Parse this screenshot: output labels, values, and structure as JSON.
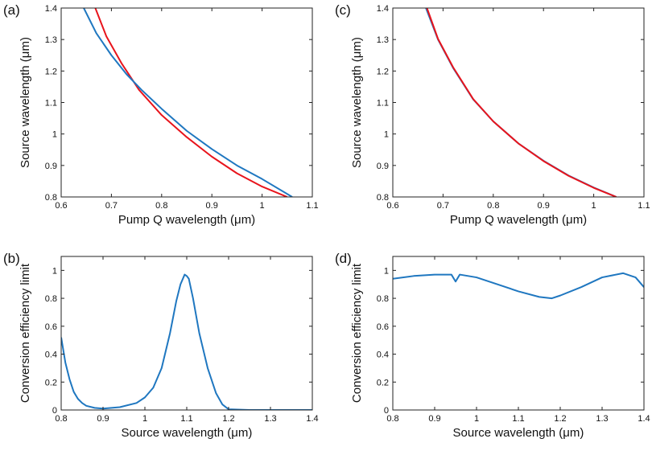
{
  "chart_data": [
    {
      "panel": "(a)",
      "type": "line",
      "xlabel": "Pump Q wavelength (μm)",
      "ylabel": "Source wavelength (μm)",
      "xlim": [
        0.6,
        1.1
      ],
      "ylim": [
        0.8,
        1.4
      ],
      "xticks": [
        "0.6",
        "0.7",
        "0.8",
        "0.9",
        "1",
        "1.1"
      ],
      "yticks": [
        "0.8",
        "0.9",
        "1",
        "1.1",
        "1.2",
        "1.3",
        "1.4"
      ],
      "grid": false,
      "series": [
        {
          "color": "#e8141c",
          "x": [
            0.668,
            0.69,
            0.72,
            0.755,
            0.8,
            0.85,
            0.9,
            0.95,
            1.0,
            1.05
          ],
          "y": [
            1.4,
            1.31,
            1.225,
            1.14,
            1.06,
            0.99,
            0.928,
            0.875,
            0.833,
            0.8
          ]
        },
        {
          "color": "#1f77c0",
          "x": [
            0.645,
            0.67,
            0.7,
            0.73,
            0.76,
            0.8,
            0.85,
            0.9,
            0.95,
            1.0,
            1.06
          ],
          "y": [
            1.4,
            1.32,
            1.25,
            1.19,
            1.14,
            1.08,
            1.01,
            0.952,
            0.9,
            0.857,
            0.8
          ]
        }
      ]
    },
    {
      "panel": "(c)",
      "type": "line",
      "xlabel": "Pump Q wavelength (μm)",
      "ylabel": "Source wavelength (μm)",
      "xlim": [
        0.6,
        1.1
      ],
      "ylim": [
        0.8,
        1.4
      ],
      "xticks": [
        "0.6",
        "0.7",
        "0.8",
        "0.9",
        "1",
        "1.1"
      ],
      "yticks": [
        "0.8",
        "0.9",
        "1",
        "1.1",
        "1.2",
        "1.3",
        "1.4"
      ],
      "grid": false,
      "series": [
        {
          "color": "#1f77c0",
          "x": [
            0.666,
            0.69,
            0.72,
            0.76,
            0.8,
            0.85,
            0.9,
            0.95,
            1.0,
            1.045
          ],
          "y": [
            1.4,
            1.3,
            1.21,
            1.11,
            1.04,
            0.97,
            0.915,
            0.868,
            0.83,
            0.8
          ]
        },
        {
          "color": "#e8141c",
          "x": [
            0.668,
            0.69,
            0.72,
            0.76,
            0.8,
            0.85,
            0.9,
            0.95,
            1.0,
            1.045
          ],
          "y": [
            1.4,
            1.302,
            1.212,
            1.111,
            1.04,
            0.97,
            0.914,
            0.867,
            0.829,
            0.8
          ]
        }
      ]
    },
    {
      "panel": "(b)",
      "type": "line",
      "xlabel": "Source wavelength (μm)",
      "ylabel": "Conversion efficiency limit",
      "xlim": [
        0.8,
        1.4
      ],
      "ylim": [
        0,
        1.1
      ],
      "xticks": [
        "0.8",
        "0.9",
        "1",
        "1.1",
        "1.2",
        "1.3",
        "1.4"
      ],
      "yticks": [
        "0",
        "0.2",
        "0.4",
        "0.6",
        "0.8",
        "1"
      ],
      "grid": false,
      "series": [
        {
          "color": "#1f77c0",
          "x": [
            0.8,
            0.81,
            0.82,
            0.83,
            0.84,
            0.85,
            0.86,
            0.88,
            0.9,
            0.94,
            0.98,
            1.0,
            1.02,
            1.04,
            1.06,
            1.075,
            1.085,
            1.095,
            1.1,
            1.105,
            1.115,
            1.13,
            1.15,
            1.17,
            1.185,
            1.2,
            1.25,
            1.3,
            1.4
          ],
          "y": [
            0.52,
            0.34,
            0.22,
            0.13,
            0.08,
            0.05,
            0.03,
            0.015,
            0.01,
            0.02,
            0.05,
            0.09,
            0.16,
            0.3,
            0.55,
            0.78,
            0.9,
            0.97,
            0.96,
            0.94,
            0.8,
            0.55,
            0.3,
            0.12,
            0.04,
            0.005,
            0.0,
            0.0,
            0.0
          ]
        }
      ]
    },
    {
      "panel": "(d)",
      "type": "line",
      "xlabel": "Source wavelength (μm)",
      "ylabel": "Conversion efficiency limit",
      "xlim": [
        0.8,
        1.4
      ],
      "ylim": [
        0,
        1.1
      ],
      "xticks": [
        "0.8",
        "0.9",
        "1",
        "1.1",
        "1.2",
        "1.3",
        "1.4"
      ],
      "yticks": [
        "0",
        "0.2",
        "0.4",
        "0.6",
        "0.8",
        "1"
      ],
      "grid": false,
      "series": [
        {
          "color": "#1f77c0",
          "x": [
            0.8,
            0.85,
            0.9,
            0.94,
            0.95,
            0.96,
            1.0,
            1.05,
            1.1,
            1.15,
            1.18,
            1.2,
            1.25,
            1.3,
            1.35,
            1.38,
            1.4
          ],
          "y": [
            0.94,
            0.96,
            0.97,
            0.97,
            0.92,
            0.97,
            0.95,
            0.9,
            0.85,
            0.81,
            0.8,
            0.82,
            0.88,
            0.95,
            0.98,
            0.95,
            0.88
          ]
        }
      ]
    }
  ]
}
